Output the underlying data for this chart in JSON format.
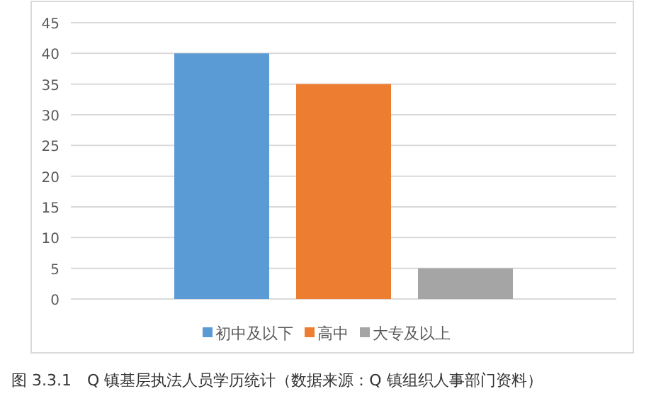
{
  "chart_data": {
    "type": "bar",
    "categories": [
      null
    ],
    "series": [
      {
        "name": "初中及以下",
        "color": "#5b9bd5",
        "values": [
          40
        ]
      },
      {
        "name": "高中",
        "color": "#ed7d31",
        "values": [
          35
        ]
      },
      {
        "name": "大专及以上",
        "color": "#a5a5a5",
        "values": [
          5
        ]
      }
    ],
    "ylim": [
      0,
      45
    ],
    "yticks": [
      0,
      5,
      10,
      15,
      20,
      25,
      30,
      35,
      40,
      45
    ],
    "grid": "y",
    "legend": "bottom",
    "annotations": [
      "图 3.3.1　Q 镇基层执法人员学历统计（数据来源：Q 镇组织人事部门资料）"
    ]
  }
}
